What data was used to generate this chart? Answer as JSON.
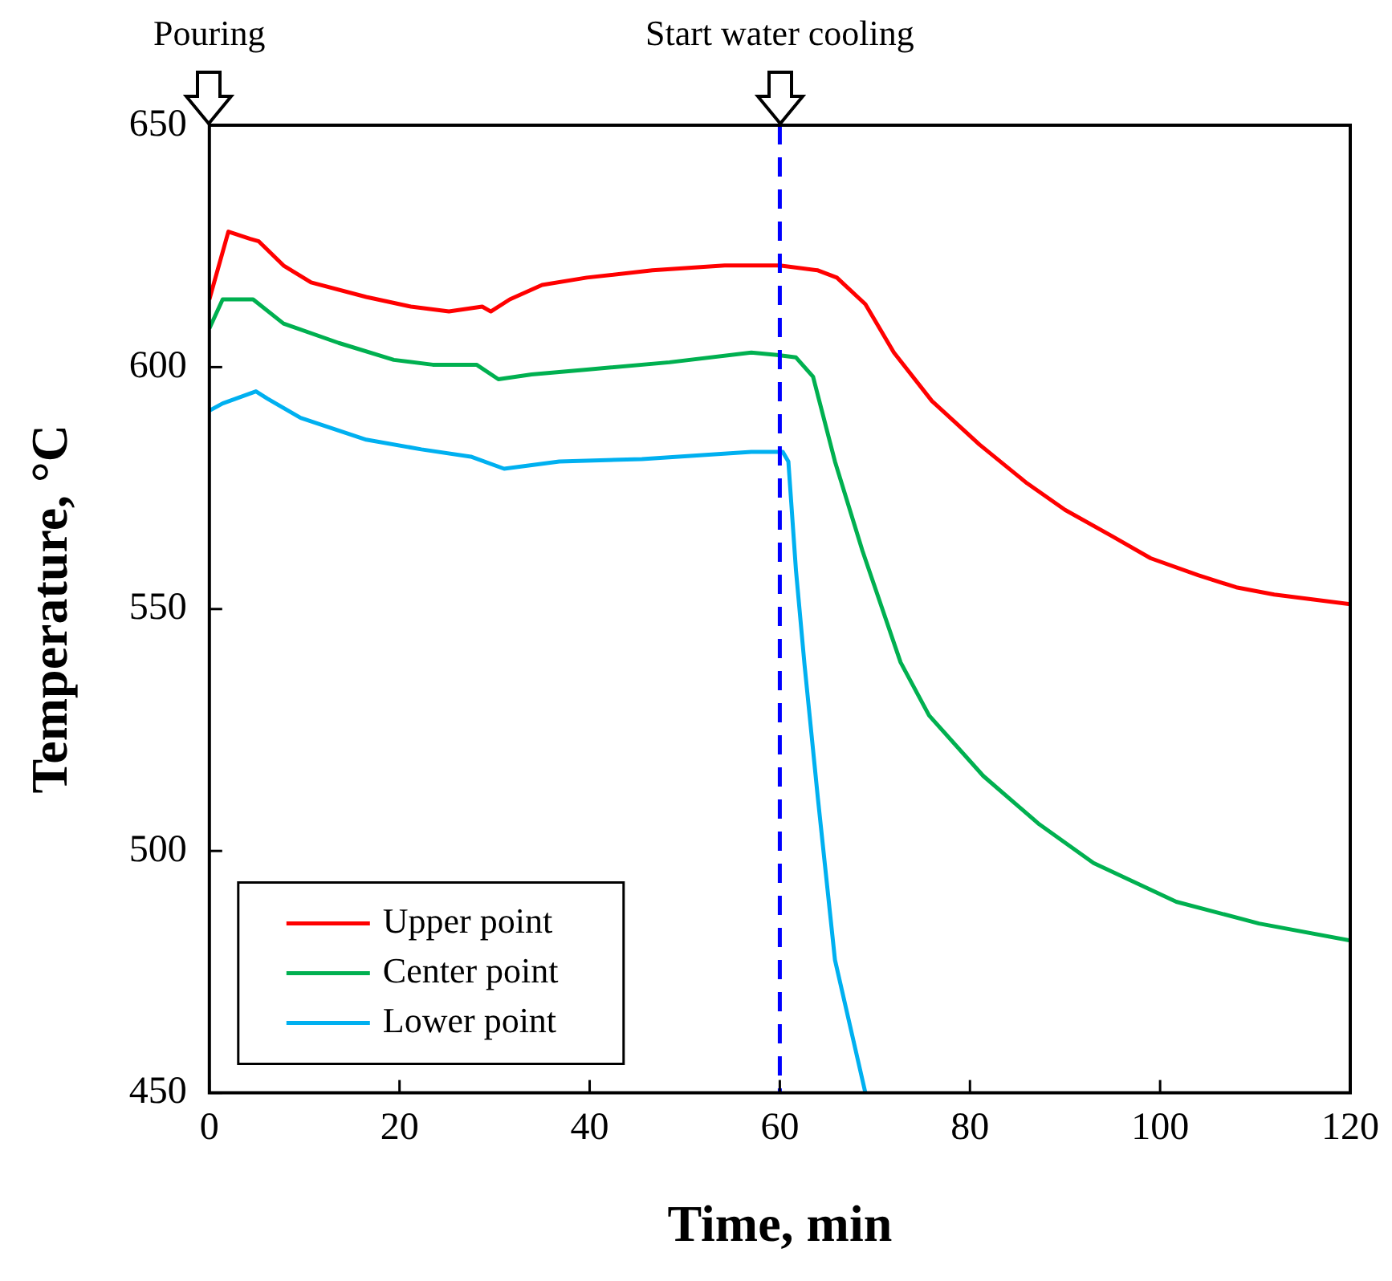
{
  "chart_data": {
    "type": "line",
    "xlabel": "Time, min",
    "ylabel": "Temperature, °C",
    "xlim": [
      0,
      120
    ],
    "xticks": [
      0,
      20,
      40,
      60,
      80,
      100,
      120
    ],
    "ylim": [
      450,
      650
    ],
    "yticks": [
      450,
      500,
      550,
      600,
      650
    ],
    "grid": false,
    "legend": "bottom left",
    "marker": "none",
    "line_style": "solid",
    "ref_lines": [
      {
        "axis": "x",
        "value": 60,
        "label": "Start water cooling",
        "color": "#0000ff",
        "line_style": "dashed"
      }
    ],
    "annotations": [
      "Pouring"
    ],
    "series": [
      {
        "name": "Upper point",
        "color": "#ff0000",
        "x": [
          0,
          2,
          4.3,
          5.2,
          7.8,
          10.7,
          16.5,
          21.2,
          25.2,
          28.7,
          29.6,
          31.6,
          35,
          39.7,
          46.6,
          54.2,
          60,
          64,
          66,
          69,
          72,
          76,
          81,
          86,
          90,
          95,
          99,
          104,
          108,
          112,
          116,
          120
        ],
        "values": [
          614,
          628,
          626.5,
          626,
          621,
          617.5,
          614.5,
          612.5,
          611.5,
          612.5,
          611.5,
          614,
          617,
          618.5,
          620,
          621,
          621,
          620,
          618.5,
          613,
          603,
          593,
          584,
          576,
          570.5,
          565,
          560.5,
          557,
          554.5,
          553,
          552,
          551
        ]
      },
      {
        "name": "Center point",
        "color": "#00b050",
        "x": [
          0,
          1.4,
          4.6,
          7.8,
          13.6,
          19.4,
          23.5,
          28.1,
          30.4,
          33.9,
          39.7,
          48.4,
          57,
          59.7,
          61.7,
          63.5,
          65.8,
          68.7,
          72.7,
          75.7,
          81.4,
          87.3,
          93,
          101.7,
          110.4,
          120
        ],
        "values": [
          608,
          614,
          614,
          609,
          605,
          601.5,
          600.5,
          600.5,
          597.5,
          598.5,
          599.5,
          601,
          603,
          602.5,
          602,
          598,
          580.5,
          562,
          539,
          528,
          515.5,
          505.5,
          497.5,
          489.5,
          485,
          481.5
        ]
      },
      {
        "name": "Lower point",
        "color": "#00b0f0",
        "x": [
          0,
          1.4,
          4.9,
          6.1,
          9.6,
          16.5,
          22.3,
          27.5,
          31,
          36.8,
          45.5,
          57,
          60.3,
          60.9,
          61.7,
          62.6,
          64,
          65.8,
          69
        ],
        "values": [
          591,
          592.5,
          595,
          593.5,
          589.5,
          585,
          583,
          581.5,
          579,
          580.5,
          581,
          582.5,
          582.5,
          580.5,
          558,
          538.5,
          511,
          477.5,
          450
        ]
      }
    ]
  }
}
